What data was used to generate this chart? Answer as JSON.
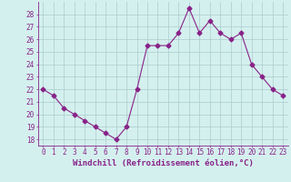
{
  "x": [
    0,
    1,
    2,
    3,
    4,
    5,
    6,
    7,
    8,
    9,
    10,
    11,
    12,
    13,
    14,
    15,
    16,
    17,
    18,
    19,
    20,
    21,
    22,
    23
  ],
  "y": [
    22.0,
    21.5,
    20.5,
    20.0,
    19.5,
    19.0,
    18.5,
    18.0,
    19.0,
    22.0,
    25.5,
    25.5,
    25.5,
    26.5,
    28.5,
    26.5,
    27.5,
    26.5,
    26.0,
    26.5,
    24.0,
    23.0,
    22.0,
    21.5
  ],
  "line_color": "#882288",
  "marker": "D",
  "markersize": 2.5,
  "linewidth": 0.8,
  "xlabel": "Windchill (Refroidissement éolien,°C)",
  "xlabel_fontsize": 6.5,
  "bg_color": "#d4f0ee",
  "grid_color": "#aacccc",
  "ylim": [
    17.5,
    29.0
  ],
  "xlim": [
    -0.5,
    23.5
  ],
  "yticks": [
    18,
    19,
    20,
    21,
    22,
    23,
    24,
    25,
    26,
    27,
    28
  ],
  "xticks": [
    0,
    1,
    2,
    3,
    4,
    5,
    6,
    7,
    8,
    9,
    10,
    11,
    12,
    13,
    14,
    15,
    16,
    17,
    18,
    19,
    20,
    21,
    22,
    23
  ],
  "tick_fontsize": 5.5
}
